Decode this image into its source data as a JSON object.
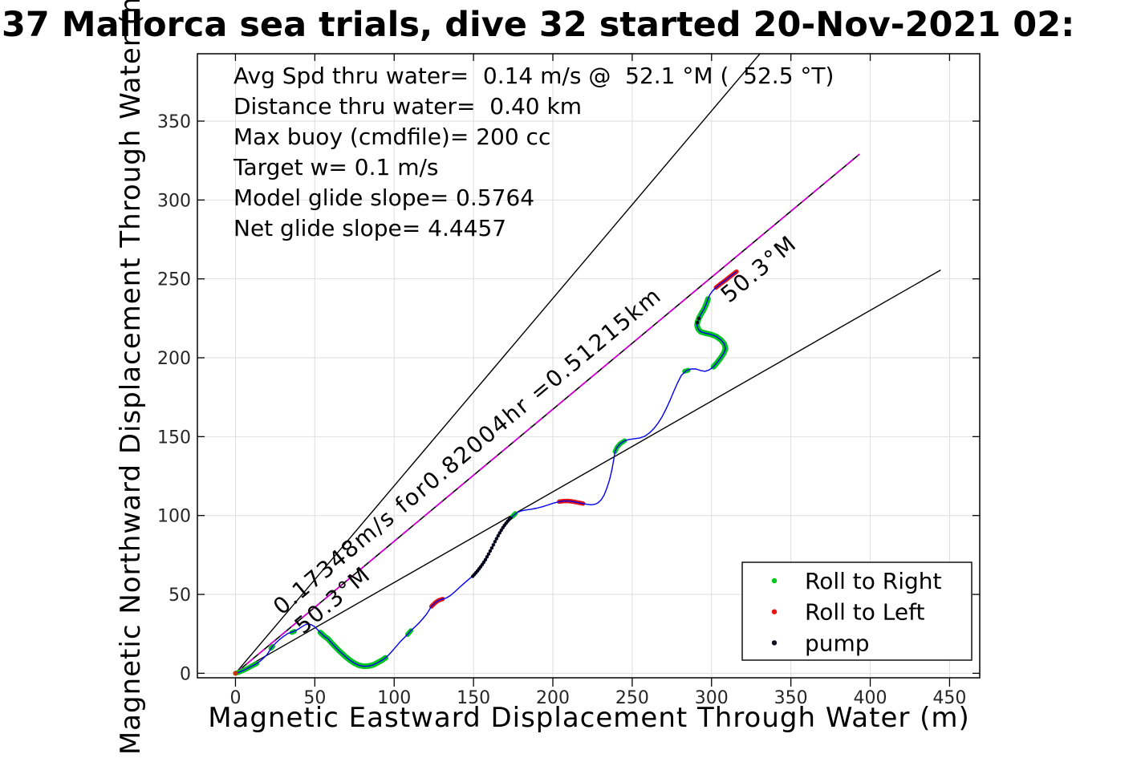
{
  "title": "37 Mallorca sea trials, dive 32 started 20-Nov-2021 02:",
  "chart_data": {
    "type": "line",
    "title": "37 Mallorca sea trials, dive 32 started 20-Nov-2021 02:",
    "xlabel": "Magnetic Eastward Displacement Through Water (m)",
    "ylabel": "Magnetic Northward Displacement Through Water (m)",
    "x_ticks": [
      0,
      50,
      100,
      150,
      200,
      250,
      300,
      350,
      400,
      450
    ],
    "y_ticks": [
      0,
      50,
      100,
      150,
      200,
      250,
      300,
      350
    ],
    "xlim": [
      -24.0,
      469.0
    ],
    "ylim": [
      -2.85,
      392.7
    ],
    "grid": true,
    "grid_color": "#dedede",
    "axis_color": "#000000",
    "stats_lines": [
      "Avg Spd thru water=  0.14 m/s @  52.1 °M (  52.5 °T)",
      "Distance thru water=  0.40 km",
      "Max buoy (cmdfile)= 200 cc",
      "Target w= 0.1 m/s",
      "Model glide slope= 0.5764",
      "Net glide slope= 4.4457"
    ],
    "line_labels": [
      {
        "text": "0.17348m/s for0.82004hr =0.51215km",
        "x": 29.0,
        "y": 36.5,
        "rot": -39.8
      },
      {
        "text": "50.3°M",
        "x": 42.5,
        "y": 24.5,
        "rot": -39.8
      },
      {
        "text": "50.3°M",
        "x": 311.0,
        "y": 234.3,
        "rot": -39.8
      }
    ],
    "reference_lines": [
      {
        "name": "bearing-line-upper",
        "color": "#000000",
        "width": 1.4,
        "from": [
          0,
          0
        ],
        "to": [
          330.5,
          392.7
        ]
      },
      {
        "name": "thru-water-line-black",
        "color": "#000000",
        "width": 1.6,
        "from": [
          0,
          0
        ],
        "to": [
          393.3,
          329.1
        ]
      },
      {
        "name": "thru-water-line-magenta",
        "color": "#d400d4",
        "width": 1.8,
        "dash": "11 7",
        "from": [
          0,
          0
        ],
        "to": [
          393.3,
          329.1
        ]
      },
      {
        "name": "bearing-line-lower",
        "color": "#000000",
        "width": 1.4,
        "from": [
          0,
          0
        ],
        "to": [
          444.4,
          255.6
        ]
      }
    ],
    "trajectory": {
      "color": "#0000ee",
      "width": 1.4,
      "points": [
        [
          0,
          0
        ],
        [
          2,
          0.6
        ],
        [
          4,
          1.4
        ],
        [
          6,
          2.3
        ],
        [
          8,
          3.3
        ],
        [
          10,
          4.4
        ],
        [
          12,
          5.4
        ],
        [
          13.5,
          6.3
        ],
        [
          16,
          8.1
        ],
        [
          18,
          9.9
        ],
        [
          20,
          12
        ],
        [
          22.8,
          16.3
        ],
        [
          25,
          18.8
        ],
        [
          27.5,
          21.2
        ],
        [
          30,
          23.2
        ],
        [
          33,
          25.2
        ],
        [
          36.4,
          26.4
        ],
        [
          39.5,
          27.9
        ],
        [
          42,
          29.6
        ],
        [
          44,
          30.8
        ],
        [
          45.5,
          31.2
        ],
        [
          47.5,
          30.9
        ],
        [
          49.5,
          29.8
        ],
        [
          51.5,
          27.9
        ],
        [
          53.5,
          25.8
        ],
        [
          56,
          23.5
        ],
        [
          58.2,
          21.9
        ],
        [
          60.5,
          19.3
        ],
        [
          63,
          16.6
        ],
        [
          66,
          13.6
        ],
        [
          69,
          10.9
        ],
        [
          72,
          8.4
        ],
        [
          75,
          6.4
        ],
        [
          78,
          5.0
        ],
        [
          81,
          4.4
        ],
        [
          84,
          4.6
        ],
        [
          87,
          5.4
        ],
        [
          90,
          7
        ],
        [
          92.5,
          8.4
        ],
        [
          94.5,
          9.8
        ],
        [
          96.5,
          11.6
        ],
        [
          99,
          14.4
        ],
        [
          101.5,
          17.3
        ],
        [
          104,
          20.2
        ],
        [
          106.5,
          22.7
        ],
        [
          108.5,
          24.6
        ],
        [
          110.5,
          27
        ],
        [
          113,
          29.3
        ],
        [
          115.5,
          31.7
        ],
        [
          118,
          34.5
        ],
        [
          120.5,
          37.6
        ],
        [
          123.5,
          42.4
        ],
        [
          125.9,
          44.8
        ],
        [
          128,
          46.2
        ],
        [
          130.5,
          47.1
        ],
        [
          133,
          47.8
        ],
        [
          135.5,
          49.3
        ],
        [
          138,
          51.5
        ],
        [
          141,
          54.3
        ],
        [
          144,
          57
        ],
        [
          147,
          59.6
        ],
        [
          149.5,
          61.6
        ],
        [
          151.5,
          63.7
        ],
        [
          153.5,
          66.2
        ],
        [
          155.5,
          68.9
        ],
        [
          157.5,
          72
        ],
        [
          159.5,
          75.6
        ],
        [
          161.5,
          79.4
        ],
        [
          163.5,
          83.4
        ],
        [
          165.5,
          87.2
        ],
        [
          167.5,
          90.7
        ],
        [
          169.5,
          93.8
        ],
        [
          171.5,
          96.4
        ],
        [
          173.5,
          98.4
        ],
        [
          175.4,
          100.2
        ],
        [
          177.5,
          101.9
        ],
        [
          180,
          102.9
        ],
        [
          183,
          103.5
        ],
        [
          186.5,
          104
        ],
        [
          190,
          104.7
        ],
        [
          193.5,
          105.6
        ],
        [
          197,
          106.7
        ],
        [
          200.5,
          107.9
        ],
        [
          204,
          108.8
        ],
        [
          207,
          109.2
        ],
        [
          210,
          109.2
        ],
        [
          213,
          108.8
        ],
        [
          216,
          108.2
        ],
        [
          219,
          107.6
        ],
        [
          221.5,
          107.1
        ],
        [
          224,
          106.8
        ],
        [
          226.5,
          107.1
        ],
        [
          228.5,
          108.1
        ],
        [
          230.5,
          110
        ],
        [
          232.3,
          113
        ],
        [
          234,
          117.2
        ],
        [
          235.7,
          122.6
        ],
        [
          237.2,
          129
        ],
        [
          238.3,
          135
        ],
        [
          239.2,
          140.5
        ],
        [
          240.5,
          143.3
        ],
        [
          242.5,
          145.6
        ],
        [
          245.2,
          147.4
        ],
        [
          248,
          148.2
        ],
        [
          251.5,
          148.7
        ],
        [
          255,
          149.2
        ],
        [
          258,
          150.3
        ],
        [
          261,
          152.4
        ],
        [
          263.8,
          155.3
        ],
        [
          266.4,
          158.7
        ],
        [
          268.8,
          162.6
        ],
        [
          271.2,
          167.2
        ],
        [
          273.6,
          172.5
        ],
        [
          276,
          178.2
        ],
        [
          278.5,
          184
        ],
        [
          281,
          188.9
        ],
        [
          284.1,
          191.8
        ],
        [
          287,
          192.9
        ],
        [
          290.2,
          192.9
        ],
        [
          293,
          191.9
        ],
        [
          295.9,
          191.4
        ],
        [
          298.5,
          192.3
        ],
        [
          301.3,
          194.3
        ],
        [
          303.5,
          196.9
        ],
        [
          305.8,
          199.9
        ],
        [
          307.8,
          203
        ],
        [
          308.8,
          205.8
        ],
        [
          308,
          208.8
        ],
        [
          306,
          211.3
        ],
        [
          303,
          213.5
        ],
        [
          299.5,
          214.8
        ],
        [
          296,
          215.6
        ],
        [
          293.2,
          216.5
        ],
        [
          291.5,
          218.3
        ],
        [
          290.8,
          220.6
        ],
        [
          291.2,
          222.9
        ],
        [
          292.2,
          225.4
        ],
        [
          293.8,
          228.4
        ],
        [
          295.4,
          231.2
        ],
        [
          296.8,
          234.3
        ],
        [
          297.8,
          237.3
        ],
        [
          298.9,
          239.9
        ],
        [
          300.6,
          242.3
        ],
        [
          302.8,
          244.5
        ],
        [
          305.5,
          246.7
        ],
        [
          308.5,
          248.9
        ],
        [
          311,
          250.9
        ],
        [
          313.5,
          252.9
        ],
        [
          315.8,
          254.6
        ]
      ]
    },
    "marker_segments": [
      {
        "name": "roll-right-start",
        "color": "#00c61e",
        "width": 6,
        "points": [
          [
            0,
            0
          ],
          [
            2,
            0.6
          ],
          [
            4,
            1.4
          ],
          [
            6,
            2.3
          ],
          [
            8,
            3.3
          ],
          [
            10,
            4.4
          ],
          [
            12,
            5.4
          ],
          [
            13.5,
            6.3
          ]
        ]
      },
      {
        "name": "roll-right-dot-1",
        "color": "#00c61e",
        "width": 6,
        "points": [
          [
            22.3,
            15.8
          ],
          [
            23.5,
            17.0
          ]
        ]
      },
      {
        "name": "roll-right-dot-2",
        "color": "#00c61e",
        "width": 6,
        "points": [
          [
            35.5,
            25.9
          ],
          [
            37.2,
            26.6
          ]
        ]
      },
      {
        "name": "roll-right-u-turn",
        "color": "#00c61e",
        "width": 7,
        "points": [
          [
            53.5,
            25.8
          ],
          [
            56,
            23.5
          ],
          [
            58.2,
            21.9
          ],
          [
            60.5,
            19.3
          ],
          [
            63,
            16.6
          ],
          [
            66,
            13.6
          ],
          [
            69,
            10.9
          ],
          [
            72,
            8.4
          ],
          [
            75,
            6.4
          ],
          [
            78,
            5.0
          ],
          [
            81,
            4.4
          ],
          [
            84,
            4.6
          ],
          [
            87,
            5.4
          ],
          [
            90,
            7
          ],
          [
            92.5,
            8.4
          ],
          [
            94.5,
            9.8
          ]
        ]
      },
      {
        "name": "roll-right-dot-3",
        "color": "#00c61e",
        "width": 6,
        "points": [
          [
            108.5,
            24.6
          ],
          [
            110.5,
            27
          ]
        ]
      },
      {
        "name": "roll-left-seg-1",
        "color": "#e51212",
        "width": 5.5,
        "points": [
          [
            123.5,
            42.4
          ],
          [
            125.9,
            44.8
          ],
          [
            128,
            46.2
          ],
          [
            130.5,
            47.1
          ]
        ]
      },
      {
        "name": "roll-right-dot-4",
        "color": "#00c61e",
        "width": 6,
        "points": [
          [
            174.6,
            99.5
          ],
          [
            176.3,
            101.2
          ]
        ]
      },
      {
        "name": "roll-left-seg-2",
        "color": "#e51212",
        "width": 5.5,
        "points": [
          [
            204,
            108.8
          ],
          [
            207,
            109.2
          ],
          [
            210,
            109.2
          ],
          [
            213,
            108.8
          ],
          [
            216,
            108.2
          ],
          [
            219,
            107.6
          ]
        ]
      },
      {
        "name": "roll-right-seg-3",
        "color": "#00c61e",
        "width": 6,
        "points": [
          [
            239.2,
            140.5
          ],
          [
            240.5,
            143.3
          ],
          [
            242.5,
            145.6
          ],
          [
            245.2,
            147.4
          ]
        ]
      },
      {
        "name": "roll-right-dot-5",
        "color": "#00c61e",
        "width": 6,
        "points": [
          [
            283,
            191.4
          ],
          [
            285.3,
            192.1
          ]
        ]
      },
      {
        "name": "roll-right-curl",
        "color": "#00c61e",
        "width": 7,
        "points": [
          [
            301.3,
            194.3
          ],
          [
            303.5,
            196.9
          ],
          [
            305.8,
            199.9
          ],
          [
            307.8,
            203
          ],
          [
            308.8,
            205.8
          ],
          [
            308,
            208.8
          ],
          [
            306,
            211.3
          ],
          [
            303,
            213.5
          ],
          [
            299.5,
            214.8
          ],
          [
            296,
            215.6
          ],
          [
            293.2,
            216.5
          ],
          [
            291.5,
            218.3
          ],
          [
            290.8,
            220.6
          ],
          [
            291.2,
            222.9
          ],
          [
            292.2,
            225.4
          ],
          [
            293.8,
            228.4
          ],
          [
            295.4,
            231.2
          ],
          [
            296.8,
            234.3
          ],
          [
            297.8,
            237.3
          ]
        ]
      },
      {
        "name": "roll-left-tip",
        "color": "#e51212",
        "width": 5.5,
        "points": [
          [
            302.8,
            244.5
          ],
          [
            305.5,
            246.7
          ],
          [
            308.5,
            248.9
          ],
          [
            311,
            250.9
          ],
          [
            313.5,
            252.9
          ],
          [
            315.8,
            254.6
          ]
        ]
      }
    ],
    "pump_dots": {
      "color": "#00001a",
      "r": 2.2,
      "points": [
        [
          149.5,
          61.5
        ],
        [
          150.5,
          62.6
        ],
        [
          151.5,
          63.7
        ],
        [
          152.5,
          64.9
        ],
        [
          153.5,
          66.2
        ],
        [
          154.5,
          67.5
        ],
        [
          155.5,
          68.9
        ],
        [
          156.5,
          70.4
        ],
        [
          157.5,
          72
        ],
        [
          158.5,
          73.8
        ],
        [
          159.5,
          75.6
        ],
        [
          160.5,
          77.5
        ],
        [
          161.5,
          79.4
        ],
        [
          162.5,
          81.4
        ],
        [
          163.5,
          83.4
        ],
        [
          164.5,
          85.3
        ],
        [
          165.5,
          87.2
        ],
        [
          166.5,
          89
        ],
        [
          167.5,
          90.7
        ],
        [
          168.5,
          92.3
        ],
        [
          169.5,
          93.8
        ],
        [
          170.5,
          95.1
        ],
        [
          171.5,
          96.4
        ],
        [
          172.5,
          97.5
        ],
        [
          173.5,
          98.4
        ],
        [
          291.0,
          222.3
        ],
        [
          292.0,
          224.9
        ]
      ]
    },
    "origin_marker": {
      "color": "#cc3300",
      "r": 3,
      "point": [
        0,
        0
      ]
    },
    "legend": {
      "entries": [
        {
          "label": "Roll to Right",
          "color": "#00c61e"
        },
        {
          "label": "Roll to Left",
          "color": "#e51212"
        },
        {
          "label": "pump",
          "color": "#111122"
        }
      ]
    }
  }
}
